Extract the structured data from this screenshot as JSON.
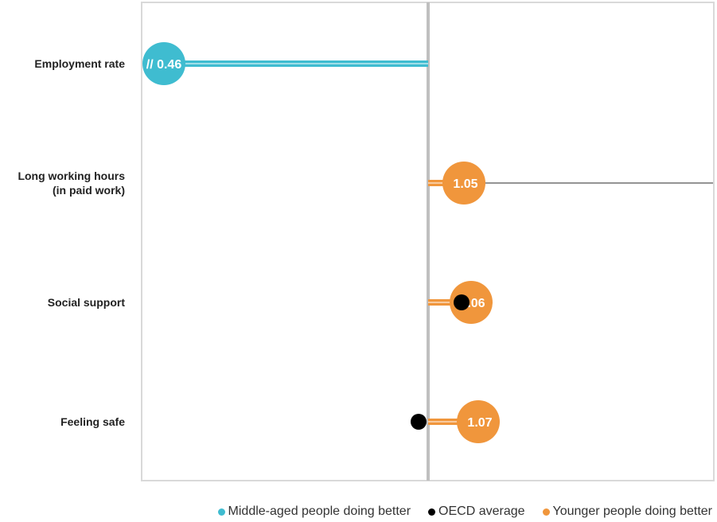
{
  "chart_data": {
    "type": "dot",
    "baseline": 1.0,
    "categories": [
      "Employment rate",
      "Long working hours\n(in paid work)",
      "Social support",
      "Feeling safe"
    ],
    "series": [
      {
        "name": "Younger people doing better",
        "color": "#F0963C"
      },
      {
        "name": "Middle-aged people doing better",
        "color": "#3FBCD0"
      },
      {
        "name": "OECD average",
        "color": "#000000"
      }
    ],
    "points": [
      {
        "category": "Employment rate",
        "value": 0.46,
        "label": "// 0.46",
        "group": "Middle-aged people doing better",
        "axis_break": true,
        "oecd_average": null
      },
      {
        "category": "Long working hours\n(in paid work)",
        "value": 1.05,
        "label": "1.05",
        "group": "Younger people doing better",
        "oecd_average": null
      },
      {
        "category": "Social support",
        "value": 1.06,
        "label": "1.06",
        "group": "Younger people doing better",
        "oecd_average": 1.05
      },
      {
        "category": "Feeling safe",
        "value": 1.07,
        "label": "1.07",
        "group": "Younger people doing better",
        "oecd_average": 0.99
      }
    ],
    "xlim": [
      0.8,
      1.2
    ],
    "grid": false,
    "legend_position": "bottom-right"
  }
}
